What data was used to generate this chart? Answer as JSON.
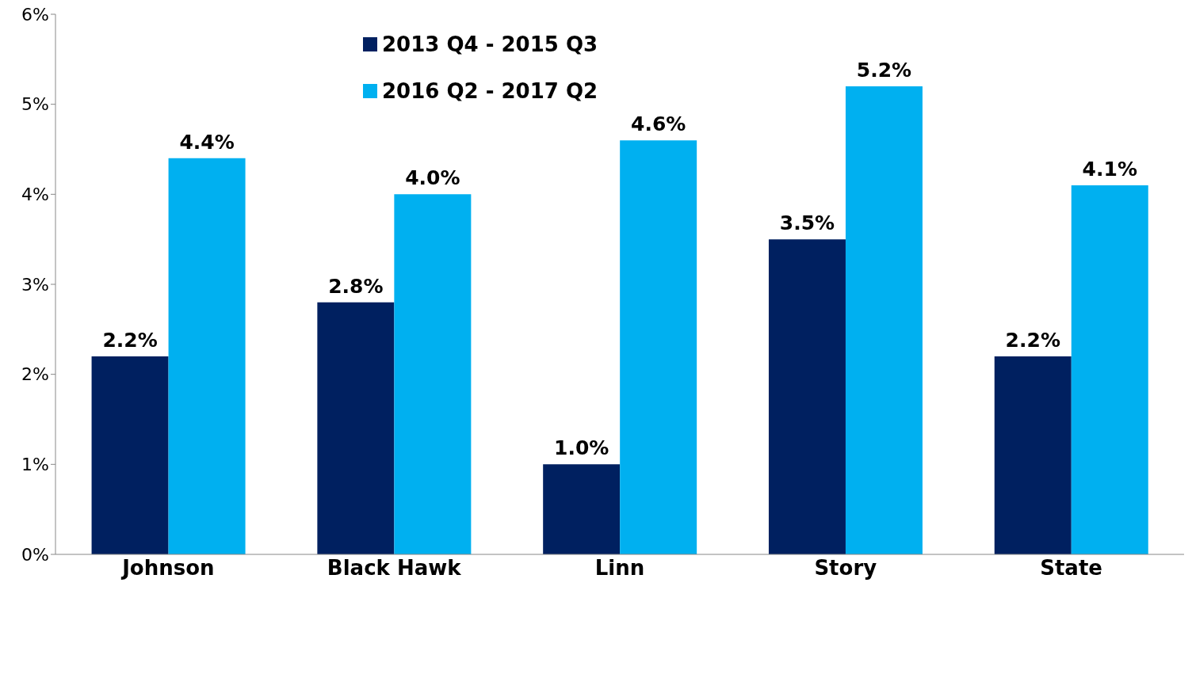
{
  "chart_data": {
    "type": "bar",
    "categories": [
      "Johnson",
      "Black Hawk",
      "Linn",
      "Story",
      "State"
    ],
    "series": [
      {
        "name": "2013 Q4 - 2015 Q3",
        "color": "#002060",
        "values": [
          2.2,
          2.8,
          1.0,
          3.5,
          2.2
        ],
        "value_labels": [
          "2.2%",
          "2.8%",
          "1.0%",
          "3.5%",
          "2.2%"
        ]
      },
      {
        "name": "2016 Q2 - 2017 Q2",
        "color": "#00b0f0",
        "values": [
          4.4,
          4.0,
          4.6,
          5.2,
          4.1
        ],
        "value_labels": [
          "4.4%",
          "4.0%",
          "4.6%",
          "5.2%",
          "4.1%"
        ]
      }
    ],
    "ylim": [
      0,
      6
    ],
    "yticks": [
      {
        "value": 0,
        "label": "0%"
      },
      {
        "value": 1,
        "label": "1%"
      },
      {
        "value": 2,
        "label": "2%"
      },
      {
        "value": 3,
        "label": "3%"
      },
      {
        "value": 4,
        "label": "4%"
      },
      {
        "value": 5,
        "label": "5%"
      },
      {
        "value": 6,
        "label": "6%"
      }
    ],
    "grid": false,
    "legend": "top"
  }
}
